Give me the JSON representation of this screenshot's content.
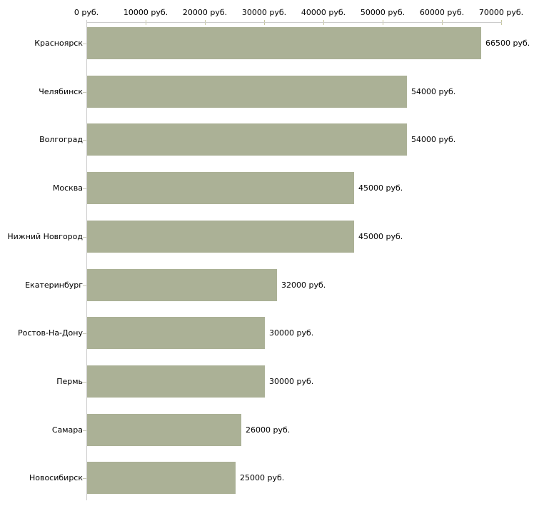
{
  "chart_data": {
    "type": "bar",
    "orientation": "horizontal",
    "title": "",
    "categories": [
      "Красноярск",
      "Челябинск",
      "Волгоград",
      "Москва",
      "Нижний Новгород",
      "Екатеринбург",
      "Ростов-На-Дону",
      "Пермь",
      "Самара",
      "Новосибирск"
    ],
    "values": [
      66500,
      54000,
      54000,
      45000,
      45000,
      32000,
      30000,
      30000,
      26000,
      25000
    ],
    "value_labels": [
      "66500 руб.",
      "54000 руб.",
      "54000 руб.",
      "45000 руб.",
      "45000 руб.",
      "32000 руб.",
      "30000 руб.",
      "30000 руб.",
      "26000 руб.",
      "25000 руб."
    ],
    "unit": "руб.",
    "x_axis": {
      "position": "top",
      "range": [
        0,
        70000
      ],
      "tick_values": [
        0,
        10000,
        20000,
        30000,
        40000,
        50000,
        60000,
        70000
      ],
      "tick_labels": [
        "0 руб.",
        "10000 руб.",
        "20000 руб.",
        "30000 руб.",
        "40000 руб.",
        "50000 руб.",
        "60000 руб.",
        "70000 руб."
      ]
    },
    "grid": false,
    "legend": false,
    "colors": {
      "bar": "#abb196",
      "axis_line": "#cccccc",
      "x_tick": "#c8c8a0",
      "category_tick": "#c8c8b8",
      "text": "#000000",
      "background": "#ffffff"
    }
  }
}
